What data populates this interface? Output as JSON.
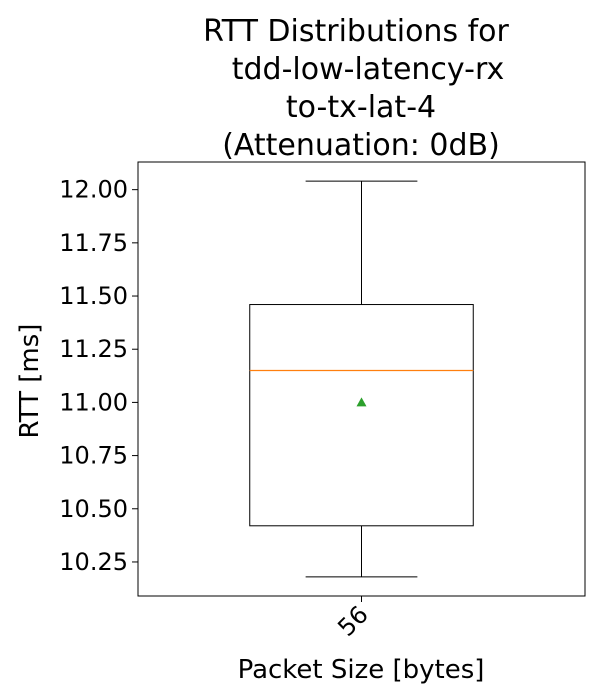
{
  "chart_data": {
    "type": "box",
    "title_lines": [
      "RTT Distributions for",
      "tdd-low-latency-rx",
      "to-tx-lat-4",
      "(Attenuation: 0dB)"
    ],
    "xlabel": "Packet Size [bytes]",
    "ylabel": "RTT [ms]",
    "categories": [
      "56"
    ],
    "ylim": [
      10.09,
      12.13
    ],
    "yticks": [
      10.25,
      10.5,
      10.75,
      11.0,
      11.25,
      11.5,
      11.75,
      12.0
    ],
    "ytick_labels": [
      "10.25",
      "10.50",
      "10.75",
      "11.00",
      "11.25",
      "11.50",
      "11.75",
      "12.00"
    ],
    "boxes": [
      {
        "category": "56",
        "whisker_low": 10.18,
        "q1": 10.42,
        "median": 11.15,
        "q3": 11.46,
        "whisker_high": 12.04,
        "mean": 11.0
      }
    ],
    "colors": {
      "median": "#ff7f0e",
      "mean": "#2ca02c",
      "box": "#000000"
    },
    "grid": false
  }
}
